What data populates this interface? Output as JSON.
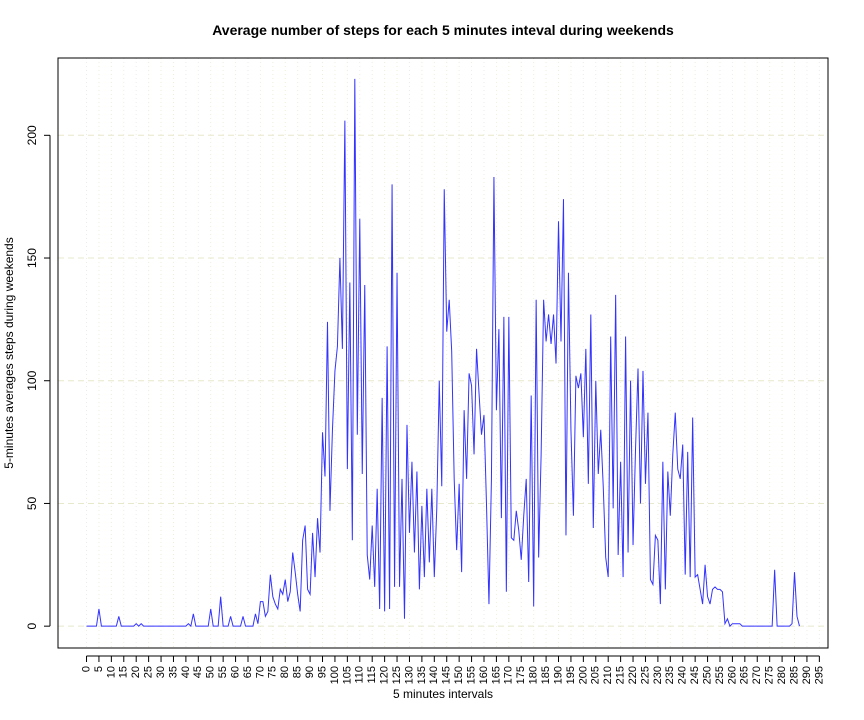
{
  "chart_data": {
    "type": "line",
    "title": "Average number of steps for each 5 minutes inteval during weekends",
    "x_label": "5 minutes intervals",
    "y_label": "5-minutes averages steps during weekends",
    "x": [
      0,
      1,
      2,
      3,
      4,
      5,
      6,
      7,
      8,
      9,
      10,
      11,
      12,
      13,
      14,
      15,
      16,
      17,
      18,
      19,
      20,
      21,
      22,
      23,
      24,
      25,
      26,
      27,
      28,
      29,
      30,
      31,
      32,
      33,
      34,
      35,
      36,
      37,
      38,
      39,
      40,
      41,
      42,
      43,
      44,
      45,
      46,
      47,
      48,
      49,
      50,
      51,
      52,
      53,
      54,
      55,
      56,
      57,
      58,
      59,
      60,
      61,
      62,
      63,
      64,
      65,
      66,
      67,
      68,
      69,
      70,
      71,
      72,
      73,
      74,
      75,
      76,
      77,
      78,
      79,
      80,
      81,
      82,
      83,
      84,
      85,
      86,
      87,
      88,
      89,
      90,
      91,
      92,
      93,
      94,
      95,
      96,
      97,
      98,
      99,
      100,
      101,
      102,
      103,
      104,
      105,
      106,
      107,
      108,
      109,
      110,
      111,
      112,
      113,
      114,
      115,
      116,
      117,
      118,
      119,
      120,
      121,
      122,
      123,
      124,
      125,
      126,
      127,
      128,
      129,
      130,
      131,
      132,
      133,
      134,
      135,
      136,
      137,
      138,
      139,
      140,
      141,
      142,
      143,
      144,
      145,
      146,
      147,
      148,
      149,
      150,
      151,
      152,
      153,
      154,
      155,
      156,
      157,
      158,
      159,
      160,
      161,
      162,
      163,
      164,
      165,
      166,
      167,
      168,
      169,
      170,
      171,
      172,
      173,
      174,
      175,
      176,
      177,
      178,
      179,
      180,
      181,
      182,
      183,
      184,
      185,
      186,
      187,
      188,
      189,
      190,
      191,
      192,
      193,
      194,
      195,
      196,
      197,
      198,
      199,
      200,
      201,
      202,
      203,
      204,
      205,
      206,
      207,
      208,
      209,
      210,
      211,
      212,
      213,
      214,
      215,
      216,
      217,
      218,
      219,
      220,
      221,
      222,
      223,
      224,
      225,
      226,
      227,
      228,
      229,
      230,
      231,
      232,
      233,
      234,
      235,
      236,
      237,
      238,
      239,
      240,
      241,
      242,
      243,
      244,
      245,
      246,
      247,
      248,
      249,
      250,
      251,
      252,
      253,
      254,
      255,
      256,
      257,
      258,
      259,
      260,
      261,
      262,
      263,
      264,
      265,
      266,
      267,
      268,
      269,
      270,
      271,
      272,
      273,
      274,
      275,
      276,
      277,
      278,
      279,
      280,
      281,
      282,
      283,
      284,
      285,
      286,
      287
    ],
    "series": [
      {
        "name": "steps",
        "color": "#3333ff",
        "values": [
          0,
          0,
          0,
          0,
          0,
          7,
          0,
          0,
          0,
          0,
          0,
          0,
          0,
          4,
          0,
          0,
          0,
          0,
          0,
          0,
          1,
          0,
          1,
          0,
          0,
          0,
          0,
          0,
          0,
          0,
          0,
          0,
          0,
          0,
          0,
          0,
          0,
          0,
          0,
          0,
          0,
          1,
          0,
          5,
          0,
          0,
          0,
          0,
          0,
          0,
          7,
          0,
          0,
          0,
          12,
          0,
          0,
          0,
          4,
          0,
          0,
          0,
          0,
          4,
          0,
          0,
          0,
          0,
          5,
          1,
          10,
          10,
          4,
          6,
          21,
          12,
          9,
          7,
          15,
          13,
          19,
          10,
          14,
          30,
          22,
          13,
          6,
          35,
          41,
          15,
          13,
          38,
          20,
          44,
          30,
          79,
          61,
          124,
          47,
          80,
          104,
          114,
          150,
          113,
          206,
          64,
          140,
          35,
          223,
          78,
          166,
          62,
          139,
          29,
          19,
          41,
          16,
          56,
          7,
          93,
          6,
          114,
          7,
          180,
          16,
          144,
          16,
          60,
          3,
          82,
          38,
          67,
          30,
          63,
          15,
          49,
          20,
          56,
          26,
          56,
          20,
          48,
          100,
          57,
          178,
          120,
          133,
          112,
          60,
          31,
          58,
          22,
          88,
          60,
          103,
          98,
          70,
          113,
          95,
          78,
          86,
          50,
          9,
          60,
          183,
          88,
          121,
          44,
          126,
          14,
          126,
          36,
          35,
          47,
          39,
          27,
          45,
          60,
          18,
          94,
          8,
          133,
          28,
          70,
          133,
          116,
          127,
          115,
          127,
          107,
          165,
          116,
          174,
          37,
          144,
          80,
          45,
          102,
          97,
          103,
          77,
          113,
          58,
          127,
          40,
          100,
          62,
          80,
          57,
          28,
          20,
          118,
          48,
          135,
          29,
          67,
          20,
          118,
          30,
          100,
          33,
          72,
          105,
          50,
          104,
          58,
          87,
          19,
          17,
          37,
          35,
          9,
          67,
          15,
          63,
          45,
          70,
          87,
          64,
          60,
          74,
          21,
          71,
          20,
          85,
          20,
          21,
          15,
          9,
          25,
          12,
          9,
          15,
          16,
          15,
          15,
          14,
          1,
          3,
          0,
          1,
          1,
          1,
          1,
          0,
          0,
          0,
          0,
          0,
          0,
          0,
          0,
          0,
          0,
          0,
          0,
          0,
          23,
          0,
          0,
          0,
          0,
          0,
          0,
          1,
          22,
          4,
          0
        ]
      }
    ],
    "xlim": [
      -11.48,
      298.48
    ],
    "ylim": [
      -8.9,
      231.5
    ],
    "xticks": [
      0,
      5,
      10,
      15,
      20,
      25,
      30,
      35,
      40,
      45,
      50,
      55,
      60,
      65,
      70,
      75,
      80,
      85,
      90,
      95,
      100,
      105,
      110,
      115,
      120,
      125,
      130,
      135,
      140,
      145,
      150,
      155,
      160,
      165,
      170,
      175,
      180,
      185,
      190,
      195,
      200,
      205,
      210,
      215,
      220,
      225,
      230,
      235,
      240,
      245,
      250,
      255,
      260,
      265,
      270,
      275,
      280,
      285,
      290,
      295
    ],
    "yticks": [
      0,
      50,
      100,
      150,
      200
    ],
    "grid": true
  }
}
